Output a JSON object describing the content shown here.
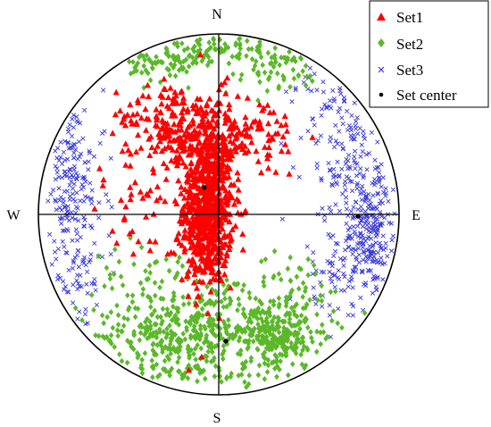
{
  "chart_data": {
    "type": "scatter",
    "projection": "stereographic-lower-hemisphere",
    "directions": {
      "north": "N",
      "south": "S",
      "east": "E",
      "west": "W"
    },
    "grid": false,
    "crosshair": true,
    "legend_placement": "top-right",
    "axis_range": {
      "x": [
        -1,
        1
      ],
      "y": [
        -1,
        1
      ]
    },
    "series": [
      {
        "name": "Set1",
        "marker": "triangle",
        "color": "#ff0000",
        "approx_count": 1100,
        "clusters": [
          {
            "cx": -0.06,
            "cy": 0.05,
            "sx": 0.07,
            "sy": 0.22,
            "n": 680
          },
          {
            "cx": -0.12,
            "cy": 0.42,
            "sx": 0.18,
            "sy": 0.14,
            "n": 200
          },
          {
            "cx": -0.3,
            "cy": 0.55,
            "sx": 0.12,
            "sy": 0.1,
            "n": 80
          },
          {
            "cx": 0.18,
            "cy": 0.45,
            "sx": 0.15,
            "sy": 0.12,
            "n": 70
          },
          {
            "cx": -0.45,
            "cy": 0.1,
            "sx": 0.15,
            "sy": 0.2,
            "n": 40
          },
          {
            "cx": -0.08,
            "cy": -0.2,
            "sx": 0.07,
            "sy": 0.1,
            "n": 40
          }
        ],
        "values": []
      },
      {
        "name": "Set2",
        "marker": "diamond",
        "color": "#5cb82a",
        "approx_count": 1000,
        "clusters": [
          {
            "cx": -0.25,
            "cy": -0.68,
            "sx": 0.22,
            "sy": 0.09,
            "n": 230
          },
          {
            "cx": 0.32,
            "cy": -0.68,
            "sx": 0.1,
            "sy": 0.07,
            "n": 200
          },
          {
            "cx": 0.05,
            "cy": -0.55,
            "sx": 0.3,
            "sy": 0.12,
            "n": 230
          },
          {
            "cx": 0.0,
            "cy": -0.88,
            "sx": 0.3,
            "sy": 0.05,
            "n": 70
          },
          {
            "cx": -0.3,
            "cy": 0.84,
            "sx": 0.1,
            "sy": 0.05,
            "n": 60
          },
          {
            "cx": 0.05,
            "cy": 0.93,
            "sx": 0.35,
            "sy": 0.05,
            "n": 90
          },
          {
            "cx": 0.3,
            "cy": 0.8,
            "sx": 0.15,
            "sy": 0.07,
            "n": 50
          },
          {
            "cx": -0.4,
            "cy": -0.35,
            "sx": 0.15,
            "sy": 0.1,
            "n": 40
          },
          {
            "cx": 0.45,
            "cy": -0.4,
            "sx": 0.12,
            "sy": 0.1,
            "n": 30
          }
        ],
        "values": []
      },
      {
        "name": "Set3",
        "marker": "x",
        "color": "#3a3ad8",
        "approx_count": 650,
        "clusters": [
          {
            "cx": 0.85,
            "cy": -0.1,
            "sx": 0.08,
            "sy": 0.2,
            "n": 220
          },
          {
            "cx": 0.72,
            "cy": 0.35,
            "sx": 0.12,
            "sy": 0.22,
            "n": 120
          },
          {
            "cx": -0.82,
            "cy": 0.2,
            "sx": 0.09,
            "sy": 0.22,
            "n": 160
          },
          {
            "cx": -0.78,
            "cy": -0.35,
            "sx": 0.08,
            "sy": 0.12,
            "n": 60
          },
          {
            "cx": 0.65,
            "cy": -0.35,
            "sx": 0.1,
            "sy": 0.12,
            "n": 60
          },
          {
            "cx": 0.55,
            "cy": 0.65,
            "sx": 0.1,
            "sy": 0.1,
            "n": 30
          }
        ],
        "values": []
      },
      {
        "name": "Set center",
        "marker": "dot",
        "color": "#000000",
        "values": [
          {
            "x": -0.08,
            "y": 0.15
          },
          {
            "x": 0.78,
            "y": -0.01
          },
          {
            "x": 0.04,
            "y": -0.71
          }
        ]
      }
    ],
    "legend": [
      {
        "label": "Set1",
        "marker": "triangle",
        "color": "#ff0000"
      },
      {
        "label": "Set2",
        "marker": "diamond",
        "color": "#5cb82a"
      },
      {
        "label": "Set3",
        "marker": "x",
        "color": "#3a3ad8"
      },
      {
        "label": "Set center",
        "marker": "dot",
        "color": "#000000"
      }
    ]
  }
}
